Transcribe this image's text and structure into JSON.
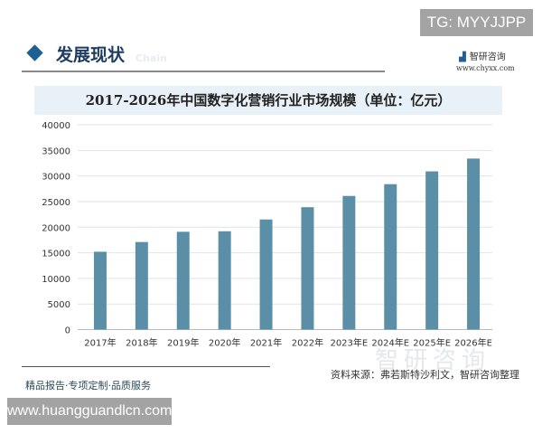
{
  "watermark_top": "TG: MYYJJPP",
  "section_title": "发展现状",
  "section_subtitle": "Chain",
  "brand": {
    "name": "智研咨询",
    "url": "www.chyxx.com",
    "watermark": "智研咨询"
  },
  "footer": {
    "slogan": "精品报告·专项定制·品质服务",
    "source": "资料来源：弗若斯特沙利文，智研咨询整理"
  },
  "watermark_bottom": "www.huangguandlcn.com",
  "chart_data": {
    "type": "bar",
    "title": "2017-2026年中国数字化营销行业市场规模（单位：亿元）",
    "categories": [
      "2017年",
      "2018年",
      "2019年",
      "2020年",
      "2021年",
      "2022年",
      "2023年E",
      "2024年E",
      "2025年E",
      "2026年E"
    ],
    "values": [
      15200,
      17100,
      19100,
      19200,
      21500,
      23900,
      26100,
      28400,
      30900,
      33400
    ],
    "ylim": [
      0,
      40000
    ],
    "yticks": [
      0,
      5000,
      10000,
      15000,
      20000,
      25000,
      30000,
      35000,
      40000
    ],
    "grid": true,
    "bar_color": "#5b8fa8",
    "xlabel": "",
    "ylabel": ""
  }
}
